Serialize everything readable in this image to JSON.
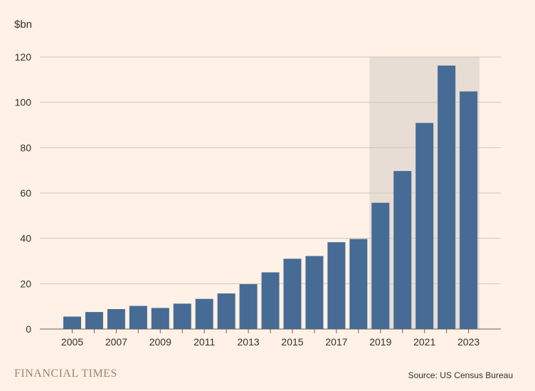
{
  "brand": "FINANCIAL TIMES",
  "source": "Source: US Census Bureau",
  "colors": {
    "background": "#FFF1E5",
    "bar": "#466B95",
    "highlight_band": "#E8DDD4",
    "grid": "#CEC6B9",
    "axis": "#66605C",
    "text": "#33302E"
  },
  "chart_data": {
    "type": "bar",
    "unit_label": "$bn",
    "categories": [
      "2005",
      "2006",
      "2007",
      "2008",
      "2009",
      "2010",
      "2011",
      "2012",
      "2013",
      "2014",
      "2015",
      "2016",
      "2017",
      "2018",
      "2019",
      "2020",
      "2021",
      "2022",
      "2023"
    ],
    "values": [
      5.5,
      7.5,
      8.8,
      10.2,
      9.3,
      11.2,
      13.3,
      15.7,
      19.8,
      25.0,
      31.0,
      32.2,
      38.3,
      39.7,
      55.7,
      69.7,
      90.9,
      116.2,
      104.8
    ],
    "x_tick_labels": [
      "2005",
      "2007",
      "2009",
      "2011",
      "2013",
      "2015",
      "2017",
      "2019",
      "2021",
      "2023"
    ],
    "y_ticks": [
      0,
      20,
      40,
      60,
      80,
      100,
      120
    ],
    "ylim": [
      0,
      120
    ],
    "grid": true,
    "highlight_range": [
      "2019",
      "2023"
    ]
  }
}
